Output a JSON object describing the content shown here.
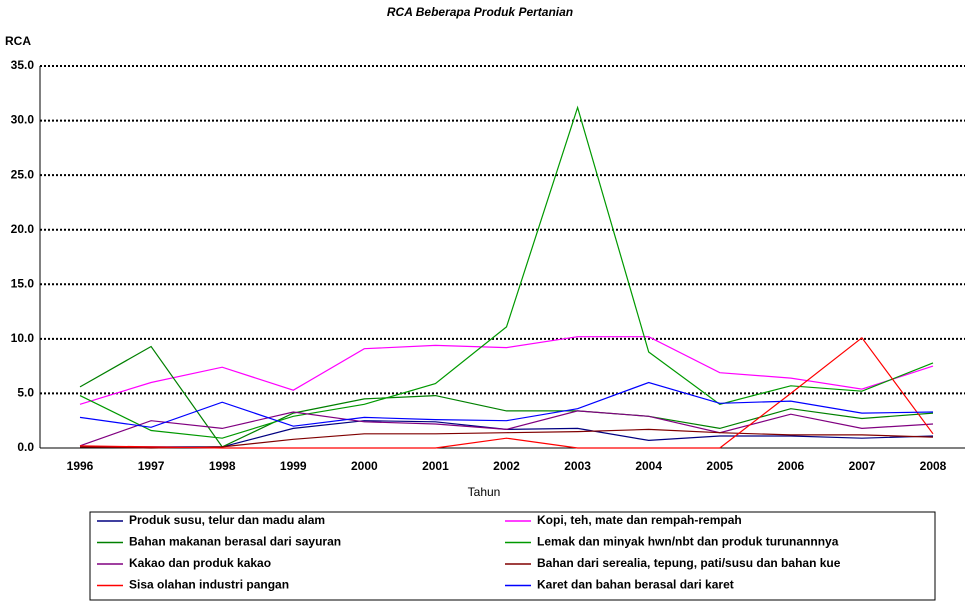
{
  "chart_data": {
    "type": "line",
    "title": "RCA Beberapa Produk Pertanian",
    "y_label": "RCA",
    "x_label": "Tahun",
    "categories": [
      "1996",
      "1997",
      "1998",
      "1999",
      "2000",
      "2001",
      "2002",
      "2003",
      "2004",
      "2005",
      "2006",
      "2007",
      "2008"
    ],
    "ylim": [
      0,
      35
    ],
    "yticks": [
      {
        "value": 0,
        "label": "0.0"
      },
      {
        "value": 5,
        "label": "5.0"
      },
      {
        "value": 10,
        "label": "10.0"
      },
      {
        "value": 15,
        "label": "15.0"
      },
      {
        "value": 20,
        "label": "20.0"
      },
      {
        "value": 25,
        "label": "25.0"
      },
      {
        "value": 30,
        "label": "30.0"
      },
      {
        "value": 35,
        "label": "35.0"
      }
    ],
    "grid": true,
    "series": [
      {
        "name": "Produk susu, telur dan madu alam",
        "color": "#000080",
        "values": [
          0.1,
          0.1,
          0.1,
          1.8,
          2.5,
          2.4,
          1.7,
          1.8,
          0.7,
          1.1,
          1.1,
          0.9,
          1.1
        ]
      },
      {
        "name": "Kopi, teh, mate dan rempah-rempah",
        "color": "#ff00ff",
        "values": [
          4.0,
          6.0,
          7.4,
          5.3,
          9.1,
          9.4,
          9.2,
          10.2,
          10.2,
          6.9,
          6.4,
          5.4,
          7.5
        ]
      },
      {
        "name": "Bahan makanan berasal dari sayuran",
        "color": "#008000",
        "values": [
          5.6,
          9.3,
          0.1,
          3.2,
          4.5,
          4.8,
          3.4,
          3.4,
          2.9,
          1.8,
          3.6,
          2.7,
          3.2
        ]
      },
      {
        "name": "Lemak dan minyak hwn/nbt dan produk turunannnya",
        "color": "#009900",
        "values": [
          4.8,
          1.6,
          0.9,
          2.9,
          4.0,
          5.9,
          11.1,
          31.2,
          8.8,
          4.0,
          5.7,
          5.2,
          7.8
        ]
      },
      {
        "name": "Kakao dan produk kakao",
        "color": "#800080",
        "values": [
          0.2,
          2.5,
          1.8,
          3.3,
          2.4,
          2.2,
          1.7,
          3.4,
          2.9,
          1.4,
          3.1,
          1.8,
          2.2
        ]
      },
      {
        "name": "Bahan dari serealia, tepung, pati/susu dan bahan kue",
        "color": "#800000",
        "values": [
          0.1,
          0.0,
          0.1,
          0.8,
          1.3,
          1.3,
          1.4,
          1.5,
          1.7,
          1.4,
          1.2,
          1.2,
          1.0
        ]
      },
      {
        "name": "Sisa olahan industri pangan",
        "color": "#ff0000",
        "values": [
          0.2,
          0.1,
          0.0,
          0.0,
          0.0,
          0.0,
          0.9,
          0.0,
          0.0,
          0.0,
          5.0,
          10.1,
          1.3
        ]
      },
      {
        "name": "Karet dan bahan berasal dari karet",
        "color": "#0000ff",
        "values": [
          2.8,
          1.9,
          4.2,
          2.0,
          2.8,
          2.6,
          2.5,
          3.6,
          6.0,
          4.1,
          4.3,
          3.2,
          3.3
        ]
      }
    ]
  }
}
